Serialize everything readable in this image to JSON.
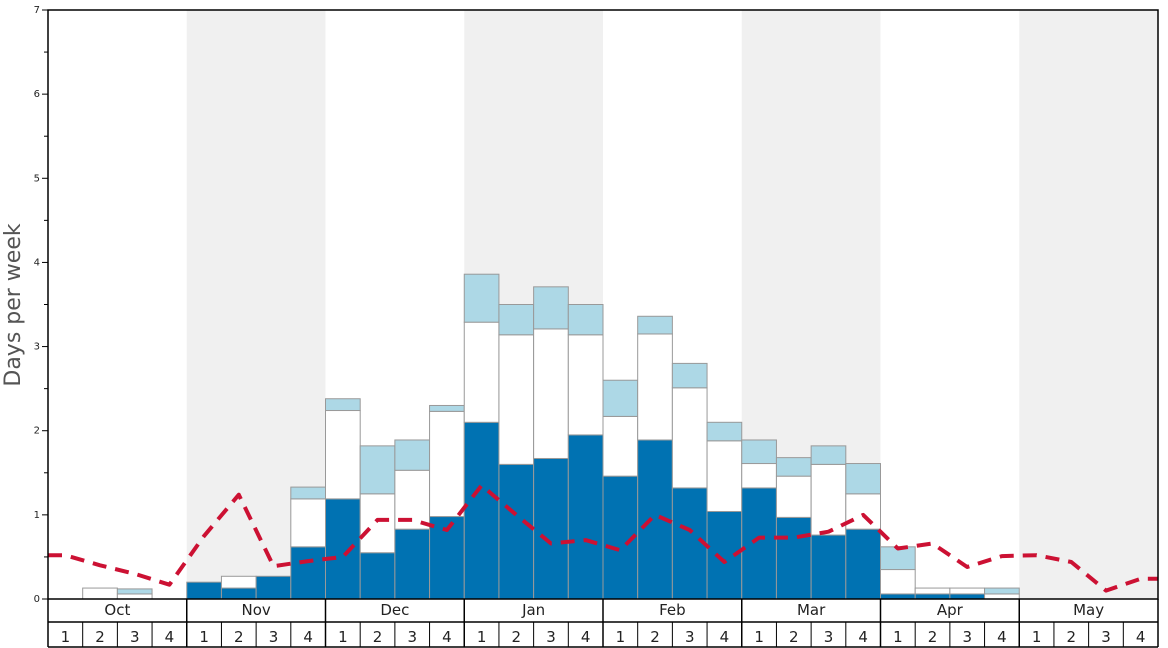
{
  "chart_data": {
    "type": "bar",
    "ylabel": "Days per week",
    "ylim": [
      0,
      7
    ],
    "yticks": [
      "0",
      "1",
      "2",
      "3",
      "4",
      "5",
      "6",
      "7"
    ],
    "months": [
      "Oct",
      "Nov",
      "Dec",
      "Jan",
      "Feb",
      "Mar",
      "Apr",
      "May"
    ],
    "weeks": [
      "1",
      "2",
      "3",
      "4"
    ],
    "stacked": true,
    "series": [
      {
        "color": "#0072b2",
        "values": [
          0,
          0,
          0,
          0,
          0.2,
          0.13,
          0.27,
          0.62,
          1.19,
          0.55,
          0.83,
          0.98,
          2.1,
          1.6,
          1.67,
          1.95,
          1.46,
          1.89,
          1.32,
          1.04,
          1.32,
          0.97,
          0.76,
          0.83,
          0.06,
          0.06,
          0.06,
          0,
          0,
          0,
          0,
          0
        ]
      },
      {
        "color": "#ffffff",
        "values": [
          0,
          0.13,
          0.06,
          0,
          0,
          0.14,
          0,
          0.57,
          1.05,
          0.7,
          0.7,
          1.25,
          1.19,
          1.54,
          1.54,
          1.19,
          0.71,
          1.26,
          1.19,
          0.84,
          0.29,
          0.49,
          0.84,
          0.42,
          0.29,
          0.07,
          0.07,
          0.06,
          0,
          0,
          0,
          0
        ]
      },
      {
        "color": "#add8e6",
        "values": [
          0,
          0,
          0.06,
          0,
          0,
          0,
          0,
          0.14,
          0.14,
          0.57,
          0.36,
          0.07,
          0.57,
          0.36,
          0.5,
          0.36,
          0.43,
          0.21,
          0.29,
          0.22,
          0.28,
          0.22,
          0.22,
          0.36,
          0.27,
          0,
          0,
          0.07,
          0,
          0,
          0,
          0
        ]
      }
    ],
    "average_line": {
      "color": "#cc1133",
      "style": "dashed",
      "values": [
        0.52,
        0.4,
        0.3,
        0.17,
        0.75,
        1.24,
        0.39,
        0.45,
        0.5,
        0.94,
        0.94,
        0.82,
        1.35,
        1.0,
        0.66,
        0.7,
        0.58,
        1.0,
        0.82,
        0.44,
        0.73,
        0.73,
        0.8,
        1.0,
        0.6,
        0.66,
        0.38,
        0.51,
        0.52,
        0.44,
        0.1,
        0.24
      ]
    },
    "shaded_months": [
      "Nov",
      "Jan",
      "Mar",
      "May"
    ],
    "shade_color": "#f0f0f0"
  }
}
